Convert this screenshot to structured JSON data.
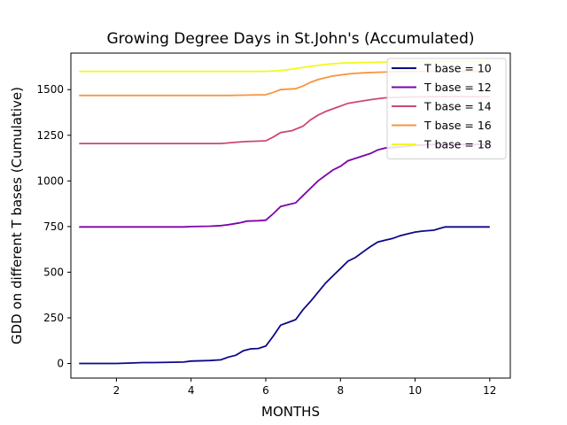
{
  "chart_data": {
    "type": "line",
    "title": "Growing Degree Days in St.John's (Accumulated)",
    "xlabel": "MONTHS",
    "ylabel": "GDD on different T bases (Cumulative)",
    "xlim": [
      0.78,
      12.55
    ],
    "ylim": [
      -80,
      1700
    ],
    "xticks": [
      2,
      4,
      6,
      8,
      10,
      12
    ],
    "yticks": [
      0,
      250,
      500,
      750,
      1000,
      1250,
      1500
    ],
    "grid": false,
    "legend_position": "top-right",
    "series": [
      {
        "name": "T base = 10",
        "color": "#0d0887",
        "x": [
          1,
          1.5,
          2,
          2.3,
          2.7,
          3,
          3.5,
          3.8,
          4,
          4.5,
          4.8,
          5,
          5.2,
          5.4,
          5.6,
          5.8,
          6,
          6.2,
          6.4,
          6.6,
          6.8,
          7,
          7.2,
          7.4,
          7.6,
          7.8,
          8,
          8.2,
          8.4,
          8.6,
          8.8,
          9,
          9.2,
          9.4,
          9.6,
          9.8,
          10,
          10.2,
          10.5,
          10.8,
          11,
          11.5,
          12
        ],
        "y": [
          0,
          0,
          0,
          2,
          5,
          5,
          7,
          8,
          13,
          16,
          20,
          35,
          45,
          70,
          80,
          82,
          95,
          150,
          210,
          225,
          240,
          295,
          340,
          390,
          440,
          480,
          520,
          560,
          580,
          610,
          640,
          665,
          675,
          685,
          700,
          710,
          720,
          725,
          730,
          748,
          748,
          748,
          748
        ]
      },
      {
        "name": "T base = 12",
        "color": "#7e03a8",
        "x": [
          1,
          2,
          3,
          3.8,
          4,
          4.5,
          4.8,
          5,
          5.3,
          5.5,
          5.8,
          6,
          6.2,
          6.4,
          6.6,
          6.8,
          7,
          7.2,
          7.4,
          7.6,
          7.8,
          8,
          8.2,
          8.5,
          8.8,
          9,
          9.2,
          9.5,
          9.8,
          10,
          10.5,
          11,
          12
        ],
        "y": [
          748,
          748,
          748,
          748,
          750,
          752,
          755,
          760,
          770,
          780,
          782,
          785,
          820,
          860,
          870,
          880,
          920,
          960,
          1000,
          1030,
          1060,
          1080,
          1110,
          1130,
          1150,
          1170,
          1180,
          1185,
          1190,
          1195,
          1200,
          1200,
          1200
        ]
      },
      {
        "name": "T base = 14",
        "color": "#cc4778",
        "x": [
          1,
          2,
          3,
          4,
          4.8,
          5,
          5.4,
          5.8,
          6,
          6.2,
          6.4,
          6.7,
          7,
          7.2,
          7.4,
          7.6,
          7.8,
          8,
          8.2,
          8.5,
          8.8,
          9,
          9.2,
          9.5,
          10,
          10.5,
          11,
          12
        ],
        "y": [
          1205,
          1205,
          1205,
          1205,
          1205,
          1208,
          1215,
          1218,
          1220,
          1240,
          1265,
          1275,
          1300,
          1335,
          1360,
          1380,
          1395,
          1410,
          1425,
          1435,
          1445,
          1450,
          1455,
          1458,
          1460,
          1462,
          1462,
          1462
        ]
      },
      {
        "name": "T base = 16",
        "color": "#f89540",
        "x": [
          1,
          2,
          3,
          4,
          5,
          5.5,
          6,
          6.2,
          6.4,
          6.8,
          7,
          7.2,
          7.4,
          7.6,
          7.8,
          8,
          8.3,
          8.6,
          9,
          9.5,
          10,
          11,
          12
        ],
        "y": [
          1468,
          1468,
          1468,
          1468,
          1468,
          1470,
          1472,
          1485,
          1500,
          1505,
          1520,
          1540,
          1555,
          1565,
          1575,
          1580,
          1588,
          1592,
          1595,
          1598,
          1600,
          1600,
          1600
        ]
      },
      {
        "name": "T base = 18",
        "color": "#f0f921",
        "x": [
          1,
          2,
          3,
          4,
          5,
          6,
          6.4,
          6.8,
          7,
          7.3,
          7.6,
          8,
          8.5,
          9,
          9.5,
          10,
          11,
          12
        ],
        "y": [
          1600,
          1600,
          1600,
          1600,
          1600,
          1600,
          1605,
          1615,
          1622,
          1630,
          1638,
          1645,
          1648,
          1650,
          1652,
          1652,
          1652,
          1652
        ]
      }
    ]
  }
}
